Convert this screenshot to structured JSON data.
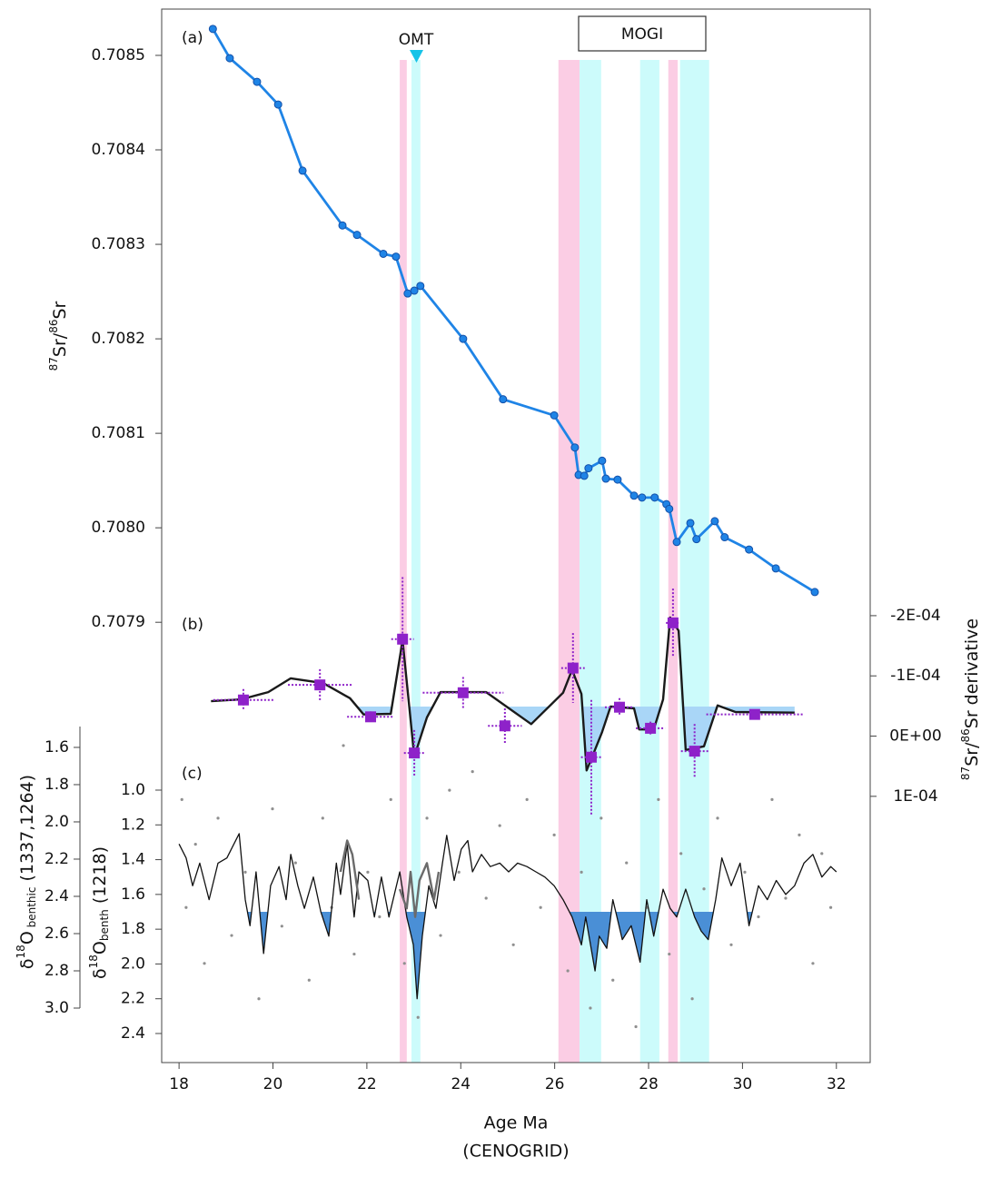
{
  "chart_data": [
    {
      "type": "line",
      "label": "(a)",
      "xlim": [
        17.63,
        32.72
      ],
      "xticks": [
        18,
        20,
        22,
        24,
        26,
        28,
        30,
        32
      ],
      "xlabel": "Age Ma",
      "xlabel2": "(CENOGRID)",
      "ylim": [
        0.707434,
        0.708549
      ],
      "yticks": [
        0.7079,
        {
          "value": 0.708,
          "label": "0.7080"
        },
        0.7081,
        0.7082,
        0.7083,
        0.7084,
        0.7085
      ],
      "ylabel": [
        "87",
        "Sr/",
        "86",
        "Sr"
      ],
      "omt": "OMT",
      "mogi": "MOGI",
      "bands": [
        {
          "xmin": 22.7,
          "xmax": 22.85,
          "color": "#fbcde4"
        },
        {
          "xmin": 22.95,
          "xmax": 23.14,
          "color": "#ccfbfb"
        },
        {
          "xmin": 26.08,
          "xmax": 26.53,
          "color": "#fbcde4"
        },
        {
          "xmin": 26.53,
          "xmax": 26.99,
          "color": "#ccfbfb"
        },
        {
          "xmin": 27.82,
          "xmax": 28.23,
          "color": "#ccfbfb"
        },
        {
          "xmin": 28.42,
          "xmax": 28.62,
          "color": "#fbcde4"
        },
        {
          "xmin": 28.67,
          "xmax": 29.29,
          "color": "#ccfbfb"
        }
      ],
      "series": [
        {
          "color": "#1f84e6",
          "marker": "circle",
          "x": [
            18.72,
            19.08,
            19.66,
            20.11,
            20.63,
            21.48,
            21.79,
            22.35,
            22.62,
            22.87,
            23.01,
            23.14,
            24.05,
            24.9,
            25.99,
            26.43,
            26.51,
            26.63,
            26.72,
            27.01,
            27.09,
            27.34,
            27.69,
            27.86,
            28.13,
            28.38,
            28.44,
            28.6,
            28.89,
            29.02,
            29.41,
            29.62,
            30.14,
            30.71,
            31.54
          ],
          "values": [
            0.708528,
            0.708497,
            0.708472,
            0.708448,
            0.708378,
            0.70832,
            0.70831,
            0.70829,
            0.708287,
            0.708248,
            0.708251,
            0.708256,
            0.7082,
            0.708136,
            0.708119,
            0.708085,
            0.708056,
            0.708055,
            0.708063,
            0.708071,
            0.708052,
            0.708051,
            0.708034,
            0.708032,
            0.708032,
            0.708025,
            0.70802,
            0.707985,
            0.708005,
            0.707988,
            0.708007,
            0.70799,
            0.707977,
            0.707957,
            0.707932
          ]
        }
      ]
    },
    {
      "type": "errorbar",
      "label": "(b)",
      "color": "#8e22c9",
      "x": [
        19.37,
        21.0,
        22.08,
        22.76,
        23.01,
        24.05,
        24.94,
        26.39,
        26.78,
        27.38,
        28.04,
        28.52,
        28.98,
        30.26
      ],
      "values": [
        -6e-05,
        -8.5e-05,
        -3.2e-05,
        -0.000161,
        2.8e-05,
        -7.2e-05,
        -1.7e-05,
        -0.000113,
        3.5e-05,
        -4.8e-05,
        -1.3e-05,
        -0.000188,
        2.5e-05,
        -3.6e-05
      ],
      "xerr": [
        0.64,
        0.68,
        0.5,
        0.24,
        0.22,
        0.86,
        0.36,
        0.25,
        0.22,
        0.31,
        0.31,
        0.15,
        0.29,
        1.03
      ],
      "yerr": [
        1.8e-05,
        2.6e-05,
        9e-06,
        0.000103,
        3.8e-05,
        2.6e-05,
        2.9e-05,
        5.8e-05,
        9.5e-05,
        1.5e-05,
        1.1e-05,
        5.7e-05,
        4.5e-05,
        3e-06
      ],
      "line": {
        "color": "#1a1a1a",
        "x": [
          18.68,
          19.32,
          19.9,
          20.38,
          21.07,
          21.64,
          21.93,
          22.51,
          22.76,
          23.01,
          23.28,
          23.57,
          24.54,
          25.5,
          26.18,
          26.37,
          26.57,
          26.68,
          26.76,
          27.01,
          27.19,
          27.69,
          27.8,
          28.11,
          28.31,
          28.46,
          28.64,
          28.79,
          29.18,
          29.47,
          29.85,
          31.11
        ],
        "values": [
          -5.8e-05,
          -6.1e-05,
          -7.3e-05,
          -9.6e-05,
          -8.8e-05,
          -6.3e-05,
          -3.6e-05,
          -3.7e-05,
          -0.000159,
          3.4e-05,
          -3.1e-05,
          -7.3e-05,
          -7.3e-05,
          -2e-05,
          -7.2e-05,
          -0.00011,
          -7e-05,
          5.7e-05,
          4.2e-05,
          -7e-06,
          -4.9e-05,
          -4.6e-05,
          -1.1e-05,
          -1.1e-05,
          -6.1e-05,
          -0.000197,
          -0.000175,
          2.3e-05,
          1.7e-05,
          -5.1e-05,
          -4e-05,
          -3.9e-05
        ]
      },
      "fill_baseline": -4.9e-05,
      "fill_color": "#a9d6f7",
      "ylim": [
        0.00015,
        -0.000227
      ],
      "yticks": [
        {
          "value": -0.0002,
          "label": "-2E-04"
        },
        {
          "value": -0.0001,
          "label": "-1E-04"
        },
        {
          "value": 0,
          "label": "0E+00"
        },
        {
          "value": 0.0001,
          "label": "1E-04"
        }
      ],
      "ylabel": [
        "87",
        "Sr/",
        "86",
        "Sr derivative"
      ]
    },
    {
      "type": "line",
      "label": "(c)",
      "ylim": [
        3.0,
        1.488
      ],
      "yticks": [
        1.6,
        1.8,
        {
          "value": 2.0,
          "label": "2.0"
        },
        2.2,
        2.4,
        2.6,
        2.8,
        {
          "value": 3.0,
          "label": "3.0"
        }
      ],
      "ylabel": [
        "δ",
        "18",
        "O",
        " benthic",
        " (1337,1264)"
      ],
      "y2lim": [
        2.4627,
        0.8955
      ],
      "y2ticks": [
        {
          "value": 1.0,
          "label": "1.0"
        },
        1.2,
        1.4,
        1.6,
        1.8,
        {
          "value": 2.0,
          "label": "2.0"
        },
        2.2,
        2.4
      ],
      "y2label": [
        "δ",
        "18",
        "O",
        "benth",
        " (1218)"
      ],
      "scatter": {
        "color": "#8f8f8f",
        "x": [
          18.06,
          18.15,
          18.35,
          18.54,
          18.83,
          19.12,
          19.41,
          19.7,
          19.99,
          20.19,
          20.48,
          20.77,
          21.06,
          21.25,
          21.5,
          21.73,
          22.02,
          22.27,
          22.51,
          22.8,
          23.09,
          23.28,
          23.57,
          23.76,
          23.96,
          24.25,
          24.54,
          24.83,
          25.12,
          25.41,
          25.7,
          25.99,
          26.28,
          26.57,
          26.76,
          26.99,
          27.24,
          27.53,
          27.73,
          27.96,
          28.21,
          28.44,
          28.69,
          28.93,
          29.18,
          29.47,
          29.76,
          30.05,
          30.34,
          30.63,
          30.92,
          31.21,
          31.5,
          31.69,
          31.88
        ],
        "values": [
          1.88,
          2.46,
          2.12,
          2.76,
          1.98,
          2.61,
          2.27,
          2.95,
          1.93,
          2.56,
          2.22,
          2.85,
          1.98,
          2.46,
          1.59,
          2.71,
          2.27,
          2.51,
          1.88,
          2.76,
          3.05,
          1.98,
          2.61,
          1.83,
          2.27,
          1.73,
          2.41,
          2.02,
          2.66,
          1.88,
          2.46,
          2.07,
          2.8,
          2.27,
          3.0,
          1.98,
          2.85,
          2.22,
          3.1,
          2.46,
          1.88,
          2.71,
          2.17,
          2.95,
          2.36,
          1.98,
          2.66,
          2.27,
          2.51,
          1.88,
          2.41,
          2.07,
          2.76,
          2.17,
          2.46
        ]
      },
      "series": [
        {
          "color": "#111111",
          "axis": "y2",
          "x": [
            18.0,
            18.15,
            18.29,
            18.44,
            18.64,
            18.83,
            19.02,
            19.28,
            19.41,
            19.51,
            19.64,
            19.8,
            19.95,
            20.13,
            20.28,
            20.38,
            20.53,
            20.67,
            20.86,
            21.02,
            21.19,
            21.35,
            21.44,
            21.58,
            21.73,
            21.83,
            22.02,
            22.16,
            22.31,
            22.47,
            22.7,
            22.85,
            22.99,
            23.07,
            23.18,
            23.32,
            23.47,
            23.61,
            23.7,
            23.86,
            24.01,
            24.15,
            24.25,
            24.44,
            24.63,
            24.83,
            25.02,
            25.21,
            25.41,
            25.6,
            25.79,
            25.99,
            26.18,
            26.37,
            26.57,
            26.66,
            26.86,
            26.95,
            27.11,
            27.24,
            27.44,
            27.63,
            27.82,
            27.96,
            28.11,
            28.31,
            28.46,
            28.6,
            28.79,
            28.98,
            29.12,
            29.27,
            29.43,
            29.56,
            29.76,
            29.95,
            30.14,
            30.34,
            30.53,
            30.72,
            30.92,
            31.11,
            31.31,
            31.5,
            31.69,
            31.88,
            32.0
          ],
          "values": [
            1.31,
            1.39,
            1.55,
            1.42,
            1.63,
            1.42,
            1.39,
            1.25,
            1.63,
            1.78,
            1.47,
            1.94,
            1.55,
            1.44,
            1.63,
            1.37,
            1.55,
            1.68,
            1.5,
            1.7,
            1.84,
            1.42,
            1.6,
            1.31,
            1.73,
            1.47,
            1.52,
            1.73,
            1.5,
            1.73,
            1.47,
            1.73,
            1.89,
            2.2,
            1.84,
            1.55,
            1.68,
            1.42,
            1.26,
            1.52,
            1.34,
            1.29,
            1.47,
            1.37,
            1.44,
            1.42,
            1.47,
            1.42,
            1.44,
            1.47,
            1.5,
            1.55,
            1.63,
            1.73,
            1.89,
            1.73,
            2.04,
            1.84,
            1.91,
            1.63,
            1.86,
            1.78,
            1.99,
            1.63,
            1.84,
            1.57,
            1.68,
            1.73,
            1.57,
            1.73,
            1.81,
            1.86,
            1.63,
            1.39,
            1.55,
            1.42,
            1.78,
            1.55,
            1.63,
            1.52,
            1.6,
            1.55,
            1.42,
            1.37,
            1.5,
            1.44,
            1.47
          ]
        },
        {
          "color": "#6b6b6b",
          "axis": "y2",
          "x": [
            21.44,
            21.58,
            21.69,
            21.83,
            null,
            22.7,
            22.85,
            22.93,
            23.03,
            23.12,
            23.28,
            23.43,
            23.53
          ],
          "values": [
            1.47,
            1.29,
            1.37,
            1.63,
            null,
            1.57,
            1.68,
            1.47,
            1.73,
            1.52,
            1.42,
            1.63,
            1.47
          ]
        }
      ],
      "fill_baseline": 1.7,
      "fill_color": "#4a8fd6"
    }
  ]
}
